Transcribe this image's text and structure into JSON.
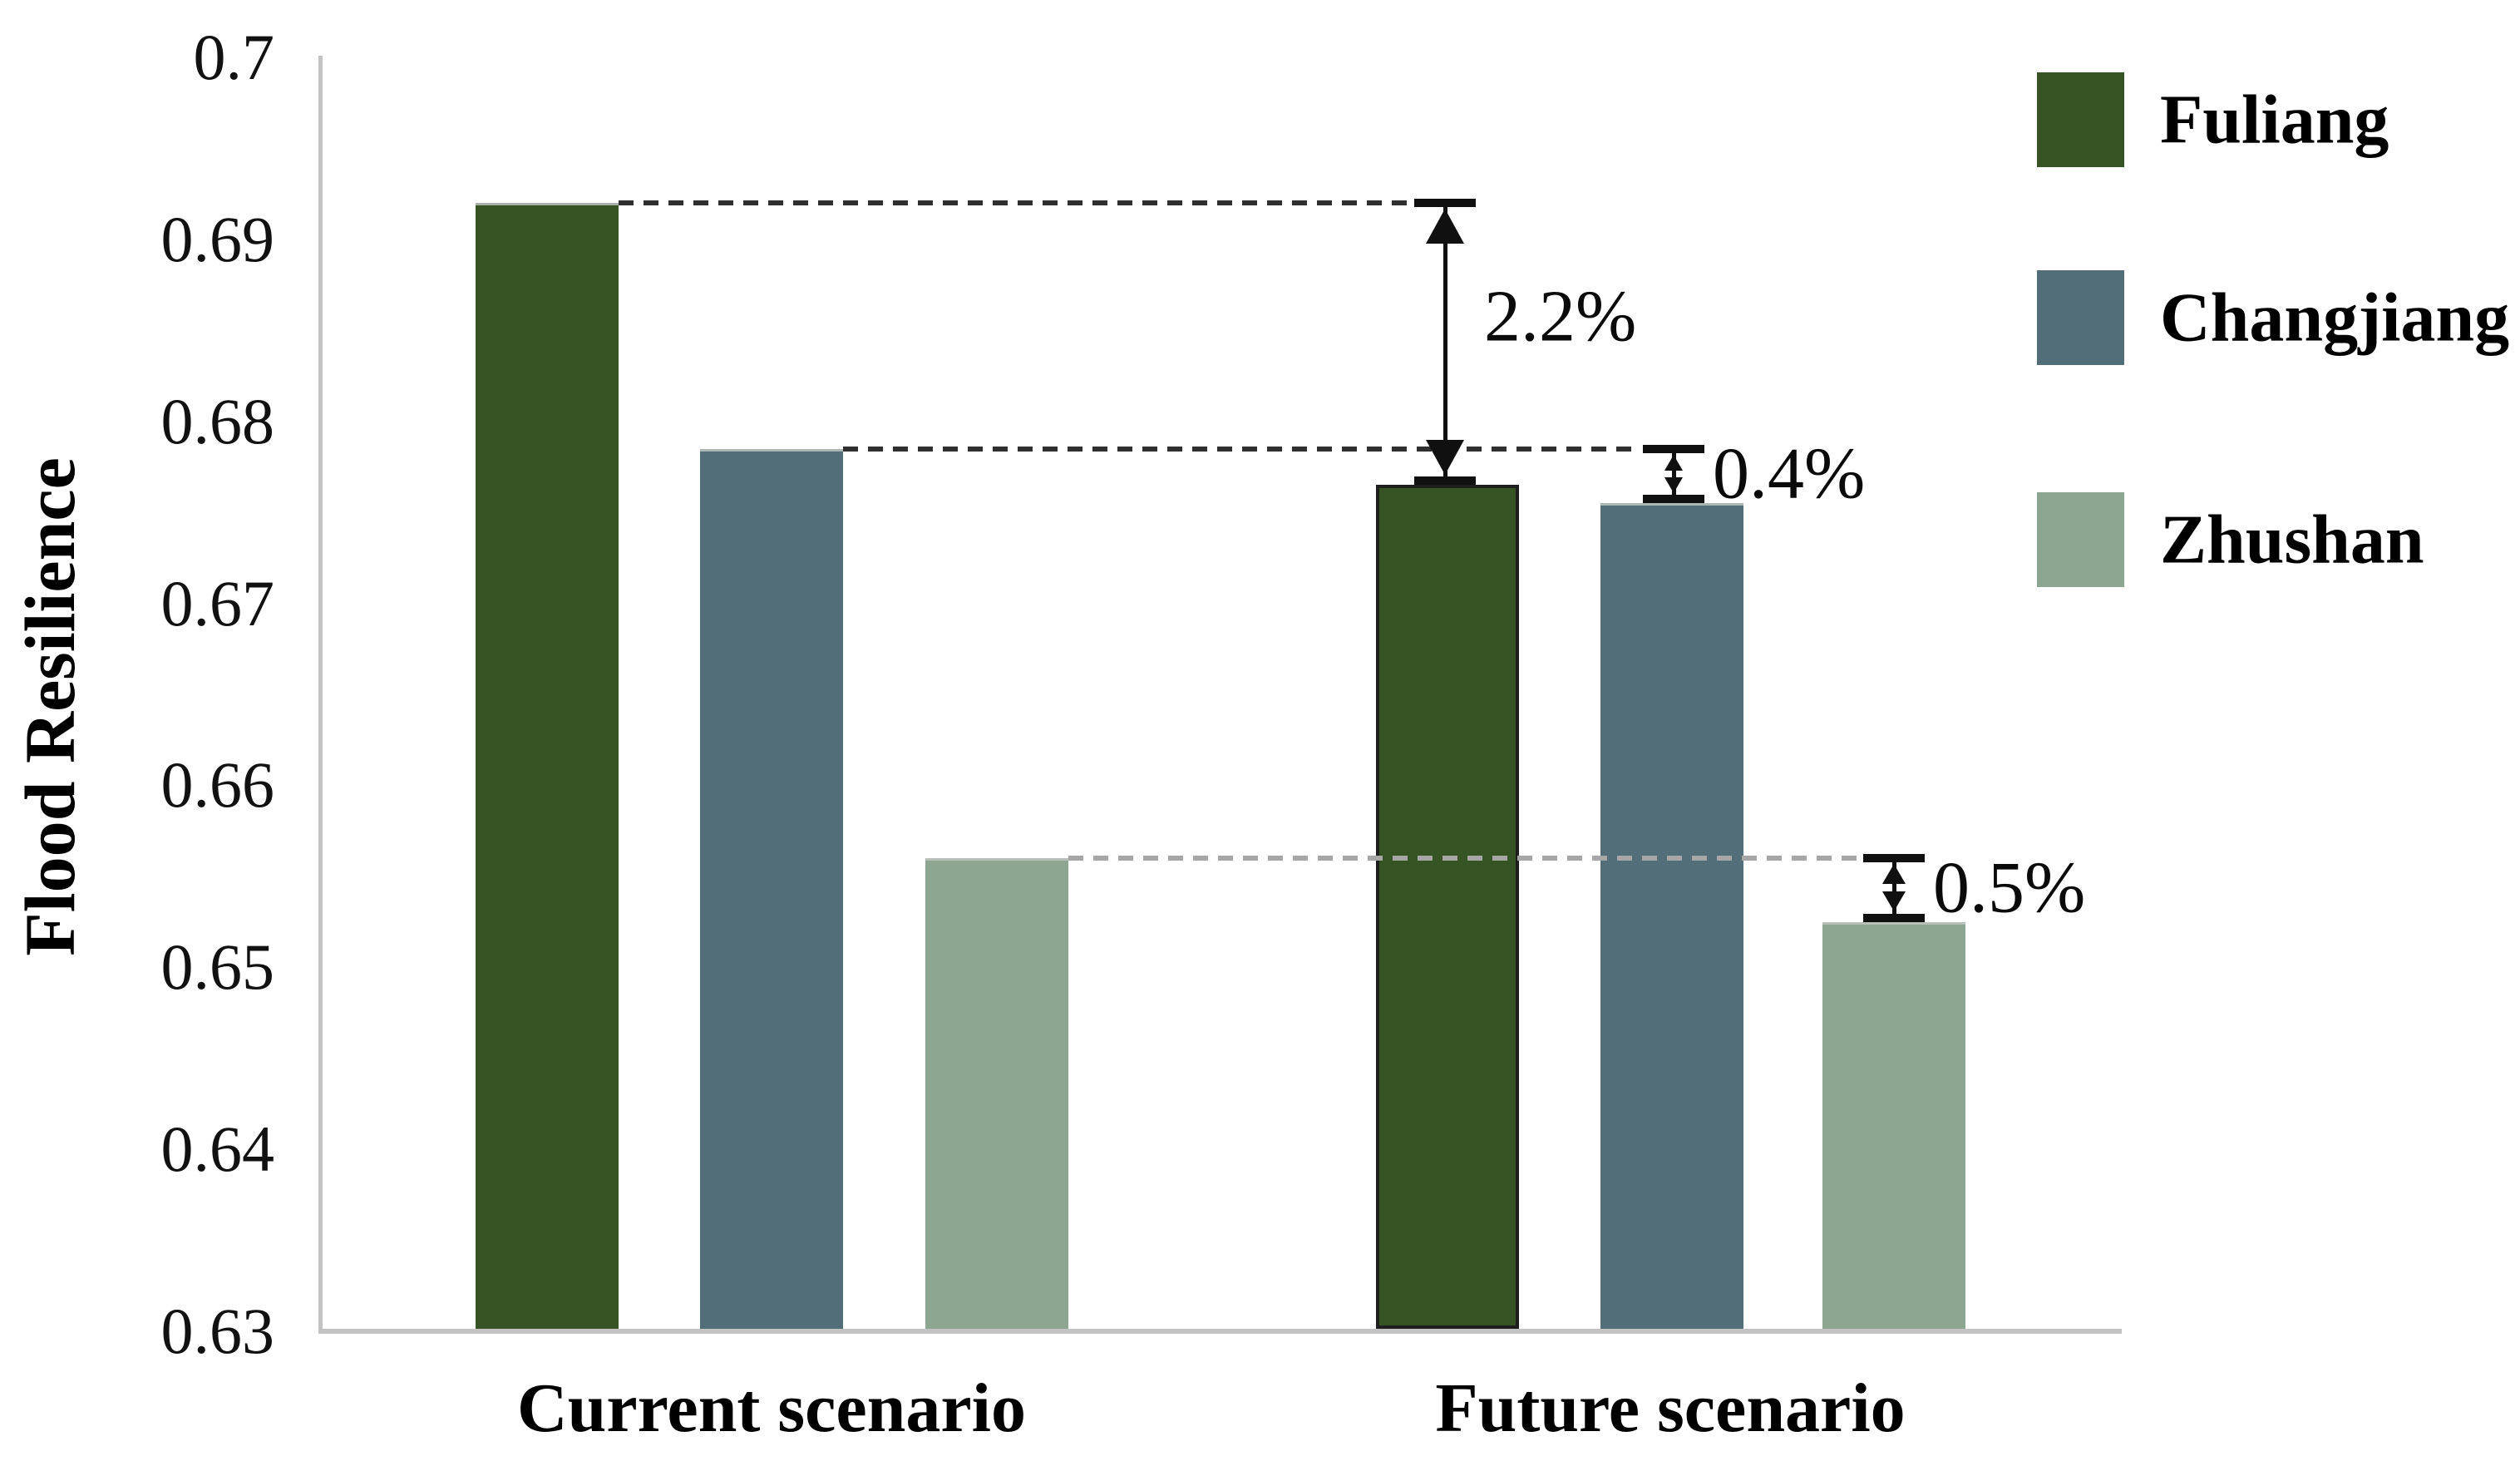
{
  "chart_data": {
    "type": "bar",
    "title": "",
    "xlabel": "",
    "ylabel": "Flood Resilience",
    "categories": [
      "Current scenario",
      "Future scenario"
    ],
    "series": [
      {
        "name": "Fuliang",
        "color": "#365423",
        "values": [
          0.692,
          0.6765
        ]
      },
      {
        "name": "Changjiang",
        "color": "#516e79",
        "values": [
          0.6785,
          0.6755
        ]
      },
      {
        "name": "Zhushan",
        "color": "#8ca691",
        "values": [
          0.656,
          0.6525
        ]
      }
    ],
    "ylim": [
      0.63,
      0.7
    ],
    "ytick_labels": [
      "0.7",
      "0.69",
      "0.68",
      "0.67",
      "0.66",
      "0.65",
      "0.64",
      "0.63"
    ],
    "ytick_values": [
      0.7,
      0.69,
      0.68,
      0.67,
      0.66,
      0.65,
      0.64,
      0.63
    ],
    "grid": false,
    "legend_position": "right",
    "legend_items": [
      "Fuliang",
      "Changjiang",
      "Zhushan"
    ],
    "annotations": [
      {
        "series": "Fuliang",
        "label": "2.2%",
        "from_value": 0.692,
        "to_value": 0.6765,
        "line_style": "dashed-dark"
      },
      {
        "series": "Changjiang",
        "label": "0.4%",
        "from_value": 0.6785,
        "to_value": 0.6755,
        "line_style": "dashed-dark"
      },
      {
        "series": "Zhushan",
        "label": "0.5%",
        "from_value": 0.656,
        "to_value": 0.6525,
        "line_style": "dashed-gray"
      }
    ],
    "colors": {
      "axis": "#c3c3c3",
      "dashed_dark": "#2f2f2f",
      "dashed_gray": "#a6a6a6",
      "annotation_ink": "#101010",
      "text": "#000000",
      "highlight_bar_border": "#1e1e1e"
    }
  }
}
